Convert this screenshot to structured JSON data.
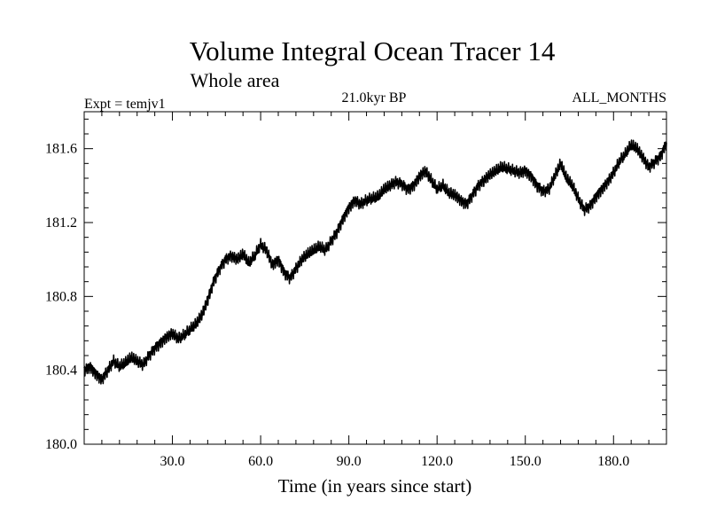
{
  "chart_data": {
    "type": "line",
    "title": "Volume Integral Ocean Tracer 14",
    "subtitle": "Whole area",
    "experiment_label": "Expt = temjv1",
    "period_label": "21.0kyr BP",
    "months_label": "ALL_MONTHS",
    "xlabel": "Time (in years since start)",
    "ylabel": "",
    "xlim": [
      0,
      198
    ],
    "ylim": [
      180.0,
      181.8
    ],
    "xticks": [
      30,
      60,
      90,
      120,
      150,
      180
    ],
    "xtick_labels": [
      "30.0",
      "60.0",
      "90.0",
      "120.0",
      "150.0",
      "180.0"
    ],
    "yticks": [
      180.0,
      180.4,
      180.8,
      181.2,
      181.6
    ],
    "ytick_labels": [
      "180.0",
      "180.4",
      "180.8",
      "181.2",
      "181.6"
    ],
    "grid": false,
    "noise_amplitude": 0.035,
    "series": [
      {
        "name": "Volume Integral Ocean Tracer 14",
        "x": [
          0,
          2,
          4,
          6,
          8,
          10,
          12,
          14,
          16,
          18,
          20,
          22,
          24,
          26,
          28,
          30,
          32,
          34,
          36,
          38,
          40,
          42,
          44,
          46,
          48,
          50,
          52,
          54,
          56,
          58,
          60,
          62,
          64,
          66,
          68,
          70,
          72,
          74,
          76,
          78,
          80,
          82,
          84,
          86,
          88,
          90,
          92,
          94,
          96,
          98,
          100,
          102,
          104,
          106,
          108,
          110,
          112,
          114,
          116,
          118,
          120,
          122,
          124,
          126,
          128,
          130,
          132,
          134,
          136,
          138,
          140,
          142,
          144,
          146,
          148,
          150,
          152,
          154,
          156,
          158,
          160,
          162,
          164,
          166,
          168,
          170,
          172,
          174,
          176,
          178,
          180,
          182,
          184,
          186,
          188,
          190,
          192,
          194,
          196,
          198
        ],
        "values": [
          180.4,
          180.42,
          180.38,
          180.35,
          180.4,
          180.45,
          180.42,
          180.44,
          180.47,
          180.45,
          180.43,
          180.48,
          180.52,
          180.55,
          180.58,
          180.6,
          180.57,
          180.59,
          180.62,
          180.65,
          180.7,
          180.78,
          180.88,
          180.95,
          181.0,
          181.02,
          181.0,
          181.03,
          180.98,
          181.02,
          181.08,
          181.05,
          180.97,
          181.0,
          180.93,
          180.9,
          180.95,
          181.0,
          181.03,
          181.05,
          181.07,
          181.05,
          181.1,
          181.15,
          181.22,
          181.28,
          181.32,
          181.3,
          181.32,
          181.33,
          181.34,
          181.38,
          181.4,
          181.42,
          181.41,
          181.38,
          181.4,
          181.45,
          181.48,
          181.43,
          181.38,
          181.4,
          181.36,
          181.35,
          181.32,
          181.3,
          181.35,
          181.4,
          181.43,
          181.46,
          181.48,
          181.5,
          181.49,
          181.48,
          181.47,
          181.48,
          181.45,
          181.4,
          181.37,
          181.38,
          181.45,
          181.52,
          181.44,
          181.4,
          181.33,
          181.27,
          181.29,
          181.34,
          181.38,
          181.42,
          181.47,
          181.53,
          181.57,
          181.62,
          181.6,
          181.55,
          181.5,
          181.53,
          181.56,
          181.63
        ]
      }
    ]
  }
}
